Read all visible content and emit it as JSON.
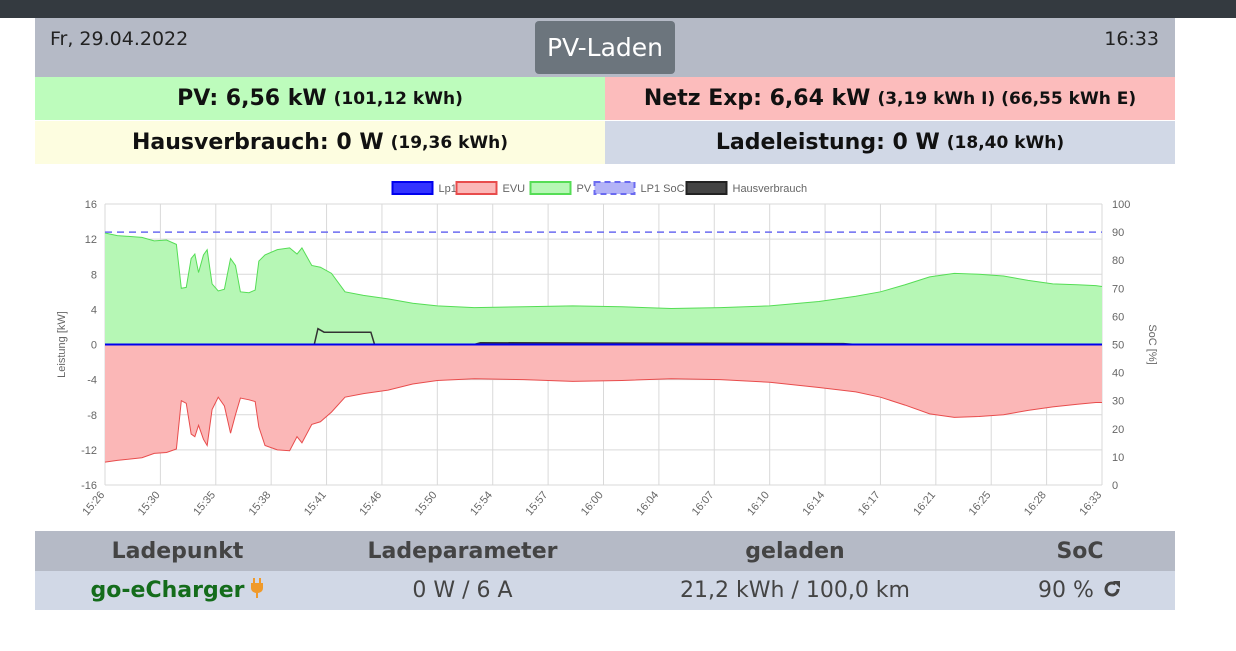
{
  "header": {
    "date": "Fr, 29.04.2022",
    "title": "PV-Laden",
    "time": "16:33"
  },
  "tiles": {
    "pv": {
      "label": "PV: 6,56 kW",
      "detail": "(101,12 kWh)"
    },
    "netz": {
      "label": "Netz Exp: 6,64 kW",
      "detail": "(3,19 kWh I) (66,55 kWh E)"
    },
    "haus": {
      "label": "Hausverbrauch: 0 W",
      "detail": "(19,36 kWh)"
    },
    "lade": {
      "label": "Ladeleistung: 0 W",
      "detail": "(18,40 kWh)"
    }
  },
  "colors": {
    "pv_fill": "#b6f7b5",
    "pv_line": "#55dd55",
    "evu_fill": "#fbb7b7",
    "evu_line": "#e84c4c",
    "lp1": "#0000ee",
    "soc": "#6b6bf0",
    "haus": "#333333"
  },
  "table": {
    "headers": [
      "Ladepunkt",
      "Ladeparameter",
      "geladen",
      "SoC"
    ],
    "row": {
      "ladepunkt": "go-eCharger",
      "parameter": "0 W / 6 A",
      "geladen": "21,2 kWh / 100,0 km",
      "soc": "90 %"
    },
    "icons": {
      "charger": "plug-icon",
      "soc_action": "refresh-icon"
    }
  },
  "chart_data": {
    "type": "area",
    "xlabel": "",
    "ylabel": "Leistung [kW]",
    "y2label": "SoC [%]",
    "ylim": [
      -16,
      16
    ],
    "y2lim": [
      0,
      100
    ],
    "yticks": [
      "16",
      "12",
      "8",
      "4",
      "0",
      "-4",
      "-8",
      "-12",
      "-16"
    ],
    "y2ticks": [
      "100",
      "90",
      "80",
      "70",
      "60",
      "50",
      "40",
      "30",
      "20",
      "10",
      "0"
    ],
    "xticks": [
      "15:26",
      "15:30",
      "15:35",
      "15:38",
      "15:41",
      "15:46",
      "15:50",
      "15:54",
      "15:57",
      "16:00",
      "16:04",
      "16:07",
      "16:10",
      "16:14",
      "16:17",
      "16:21",
      "16:25",
      "16:28",
      "16:33"
    ],
    "grid": true,
    "legend_position": "top",
    "legend": [
      "Lp1",
      "EVU",
      "PV",
      "LP1 SoC",
      "Hausverbrauch"
    ],
    "series": [
      {
        "name": "PV",
        "axis": "left",
        "points": [
          [
            0,
            12.7
          ],
          [
            1,
            12.4
          ],
          [
            3,
            12.2
          ],
          [
            4,
            11.8
          ],
          [
            5,
            11.9
          ],
          [
            5.8,
            11.4
          ],
          [
            6.2,
            6.4
          ],
          [
            6.6,
            6.5
          ],
          [
            7,
            9.8
          ],
          [
            7.3,
            10.3
          ],
          [
            7.6,
            8.2
          ],
          [
            8,
            10.2
          ],
          [
            8.3,
            10.8
          ],
          [
            8.7,
            6.9
          ],
          [
            9.2,
            6.1
          ],
          [
            9.7,
            6.3
          ],
          [
            10.2,
            9.8
          ],
          [
            10.6,
            9.0
          ],
          [
            11,
            6.0
          ],
          [
            11.7,
            5.9
          ],
          [
            12.2,
            6.2
          ],
          [
            12.5,
            9.5
          ],
          [
            13,
            10.2
          ],
          [
            14,
            10.8
          ],
          [
            15,
            11.0
          ],
          [
            15.6,
            10.3
          ],
          [
            16,
            11.0
          ],
          [
            16.8,
            9.0
          ],
          [
            17.5,
            8.8
          ],
          [
            18.4,
            8.1
          ],
          [
            19.5,
            6.0
          ],
          [
            21,
            5.6
          ],
          [
            23,
            5.2
          ],
          [
            25,
            4.7
          ],
          [
            27,
            4.4
          ],
          [
            30,
            4.2
          ],
          [
            34,
            4.3
          ],
          [
            38,
            4.4
          ],
          [
            42,
            4.3
          ],
          [
            46,
            4.1
          ],
          [
            50,
            4.2
          ],
          [
            54,
            4.4
          ],
          [
            58,
            4.9
          ],
          [
            61,
            5.5
          ],
          [
            63,
            6.0
          ],
          [
            65,
            6.8
          ],
          [
            67,
            7.7
          ],
          [
            69,
            8.1
          ],
          [
            71,
            8.0
          ],
          [
            73,
            7.8
          ],
          [
            75,
            7.3
          ],
          [
            77,
            6.9
          ],
          [
            79,
            6.8
          ],
          [
            80.5,
            6.7
          ],
          [
            81,
            6.6
          ]
        ]
      },
      {
        "name": "EVU",
        "axis": "left",
        "points": [
          [
            0,
            -13.4
          ],
          [
            1,
            -13.2
          ],
          [
            3,
            -12.9
          ],
          [
            4,
            -12.4
          ],
          [
            5,
            -12.3
          ],
          [
            5.8,
            -11.9
          ],
          [
            6.2,
            -6.4
          ],
          [
            6.6,
            -6.7
          ],
          [
            7,
            -10.2
          ],
          [
            7.3,
            -10.5
          ],
          [
            7.6,
            -9.2
          ],
          [
            8,
            -10.8
          ],
          [
            8.3,
            -11.5
          ],
          [
            8.7,
            -7.4
          ],
          [
            9.2,
            -6.0
          ],
          [
            9.7,
            -7.0
          ],
          [
            10.2,
            -10.1
          ],
          [
            10.6,
            -8.0
          ],
          [
            11,
            -6.1
          ],
          [
            11.7,
            -6.3
          ],
          [
            12.2,
            -6.5
          ],
          [
            12.5,
            -9.4
          ],
          [
            13,
            -11.5
          ],
          [
            14,
            -12.0
          ],
          [
            15,
            -12.1
          ],
          [
            15.6,
            -10.5
          ],
          [
            16,
            -11.2
          ],
          [
            16.8,
            -9.1
          ],
          [
            17.5,
            -8.8
          ],
          [
            18.4,
            -7.7
          ],
          [
            19.5,
            -6.0
          ],
          [
            21,
            -5.6
          ],
          [
            23,
            -5.2
          ],
          [
            25,
            -4.5
          ],
          [
            27,
            -4.1
          ],
          [
            30,
            -3.9
          ],
          [
            34,
            -4.0
          ],
          [
            38,
            -4.2
          ],
          [
            42,
            -4.1
          ],
          [
            46,
            -3.9
          ],
          [
            50,
            -4.0
          ],
          [
            54,
            -4.3
          ],
          [
            58,
            -4.9
          ],
          [
            61,
            -5.4
          ],
          [
            63,
            -6.0
          ],
          [
            65,
            -6.9
          ],
          [
            67,
            -7.9
          ],
          [
            69,
            -8.3
          ],
          [
            71,
            -8.2
          ],
          [
            73,
            -8.0
          ],
          [
            75,
            -7.5
          ],
          [
            77,
            -7.1
          ],
          [
            79,
            -6.8
          ],
          [
            80.5,
            -6.6
          ],
          [
            81,
            -6.6
          ]
        ]
      },
      {
        "name": "Hausverbrauch",
        "axis": "left",
        "points": [
          [
            0,
            0
          ],
          [
            17,
            0
          ],
          [
            17.3,
            1.8
          ],
          [
            17.8,
            1.4
          ],
          [
            21.6,
            1.4
          ],
          [
            21.9,
            0
          ],
          [
            30,
            0
          ],
          [
            30.5,
            0.2
          ],
          [
            60,
            0.1
          ],
          [
            61,
            0
          ],
          [
            81,
            0
          ]
        ]
      },
      {
        "name": "Lp1",
        "axis": "left",
        "points": [
          [
            0,
            0
          ],
          [
            81,
            0
          ]
        ]
      },
      {
        "name": "LP1 SoC",
        "axis": "right",
        "points": [
          [
            0,
            90
          ],
          [
            81,
            90
          ]
        ]
      }
    ]
  }
}
